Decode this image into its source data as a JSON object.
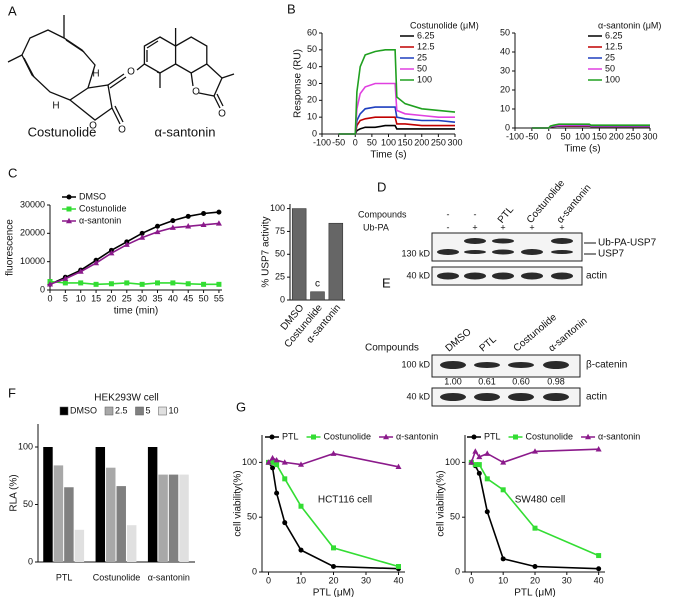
{
  "panel_labels": [
    "A",
    "B",
    "C",
    "D",
    "E",
    "F",
    "G"
  ],
  "structures": [
    {
      "name": "Costunolide",
      "atoms": [
        "H",
        "H",
        "O",
        "O"
      ]
    },
    {
      "name": "α-santonin",
      "atoms": [
        "O",
        "O",
        "O"
      ]
    }
  ],
  "blot_d": {
    "row_labels": [
      "Compounds",
      "Ub-PA"
    ],
    "compounds": [
      "-",
      "-"
    ],
    "lanes": [
      "PTL",
      "Costunolide",
      "α-santonin"
    ],
    "ub_pa": [
      "-",
      "+",
      "+",
      "+",
      "+"
    ],
    "size_markers": [
      "130 kD",
      "40 kD"
    ],
    "band_labels": [
      "Ub-PA-USP7",
      "USP7",
      "actin"
    ]
  },
  "blot_e": {
    "row_label": "Compounds",
    "lanes": [
      "DMSO",
      "PTL",
      "Costunolide",
      "α-santonin"
    ],
    "size_markers": [
      "100 kD",
      "40 kD"
    ],
    "band_labels": [
      "β-catenin",
      "actin"
    ],
    "quantities": [
      "1.00",
      "0.61",
      "0.60",
      "0.98"
    ]
  },
  "chart_data": [
    {
      "type": "line",
      "legend_title": "Costunolide (μM)",
      "xlabel": "Time (s)",
      "ylabel": "Response (RU)",
      "x": [
        -50,
        0,
        5,
        15,
        30,
        60,
        90,
        120,
        125,
        150,
        200,
        250,
        300
      ],
      "xlim": [
        -100,
        300
      ],
      "ylim": [
        0,
        60
      ],
      "xticks": [
        -100,
        -50,
        0,
        50,
        100,
        150,
        200,
        250,
        300
      ],
      "yticks": [
        0,
        10,
        20,
        30,
        40,
        50,
        60
      ],
      "series": [
        {
          "name": "6.25",
          "color": "#000000",
          "values": [
            0,
            0,
            2,
            3,
            4,
            4,
            5,
            5,
            3,
            3,
            3,
            3,
            3
          ]
        },
        {
          "name": "12.5",
          "color": "#c00000",
          "values": [
            0,
            0,
            5,
            8,
            9,
            10,
            10,
            10,
            6,
            6,
            5,
            5,
            5
          ]
        },
        {
          "name": "25",
          "color": "#1f3fbf",
          "values": [
            0,
            0,
            8,
            12,
            15,
            16,
            16,
            16,
            10,
            9,
            8,
            8,
            7
          ]
        },
        {
          "name": "50",
          "color": "#e040e0",
          "values": [
            0,
            0,
            15,
            24,
            28,
            30,
            30,
            30,
            14,
            12,
            11,
            10,
            10
          ]
        },
        {
          "name": "100",
          "color": "#20a020",
          "values": [
            0,
            0,
            25,
            40,
            47,
            49,
            50,
            50,
            22,
            18,
            15,
            14,
            13
          ]
        }
      ]
    },
    {
      "type": "line",
      "legend_title": "α-santonin (μM)",
      "xlabel": "Time (s)",
      "x": [
        -50,
        0,
        5,
        15,
        30,
        60,
        90,
        120,
        125,
        150,
        200,
        250,
        300
      ],
      "xlim": [
        -100,
        300
      ],
      "ylim": [
        0,
        50
      ],
      "xticks": [
        -100,
        -50,
        0,
        50,
        100,
        150,
        200,
        250,
        300
      ],
      "yticks": [
        0,
        10,
        20,
        30,
        40,
        50
      ],
      "series": [
        {
          "name": "6.25",
          "color": "#000000",
          "values": [
            0,
            0,
            0.5,
            0.8,
            1,
            1,
            1,
            1,
            0.8,
            0.8,
            0.8,
            0.8,
            0.8
          ]
        },
        {
          "name": "12.5",
          "color": "#c00000",
          "values": [
            0,
            0,
            0.6,
            0.9,
            1,
            1,
            1.1,
            1.1,
            0.9,
            0.9,
            0.9,
            0.9,
            0.9
          ]
        },
        {
          "name": "25",
          "color": "#1f3fbf",
          "values": [
            0,
            0,
            0.7,
            1,
            1.2,
            1.3,
            1.3,
            1.3,
            1,
            1,
            1,
            1,
            1
          ]
        },
        {
          "name": "50",
          "color": "#e040e0",
          "values": [
            0,
            0,
            0.8,
            1.2,
            1.5,
            1.6,
            1.6,
            1.6,
            1.2,
            1.2,
            1.2,
            1.2,
            1.2
          ]
        },
        {
          "name": "100",
          "color": "#20a020",
          "values": [
            0,
            0,
            1,
            1.5,
            2,
            2,
            2,
            2,
            1.5,
            1.5,
            1.5,
            1.5,
            1.5
          ]
        }
      ]
    },
    {
      "type": "line",
      "markers": true,
      "xlabel": "time (min)",
      "ylabel": "fluorescence",
      "x": [
        0,
        5,
        10,
        15,
        20,
        25,
        30,
        35,
        40,
        45,
        50,
        55
      ],
      "xlim": [
        0,
        56
      ],
      "ylim": [
        0,
        30000
      ],
      "xticks": [
        0,
        5,
        10,
        15,
        20,
        25,
        30,
        35,
        40,
        45,
        50,
        55
      ],
      "yticks": [
        0,
        10000,
        20000,
        30000
      ],
      "series": [
        {
          "name": "DMSO",
          "color": "#000000",
          "marker": "circle",
          "values": [
            2000,
            4500,
            7000,
            10500,
            14000,
            17000,
            20000,
            22500,
            24500,
            26000,
            27000,
            27500
          ]
        },
        {
          "name": "Costunolide",
          "color": "#33dd33",
          "marker": "square",
          "values": [
            3000,
            2500,
            2500,
            2000,
            2200,
            2500,
            2000,
            2500,
            2500,
            2200,
            2000,
            2000
          ]
        },
        {
          "name": "α-santonin",
          "color": "#8b1a8b",
          "marker": "triangle",
          "values": [
            2000,
            4000,
            6500,
            9500,
            13000,
            16000,
            18500,
            20500,
            22000,
            22500,
            23000,
            23500
          ]
        }
      ]
    },
    {
      "type": "bar",
      "ylabel": "% USP7 activity",
      "color": "#666666",
      "categories": [
        "DMSO",
        "Costunolide",
        "α-santonin"
      ],
      "values": [
        100,
        9,
        84
      ],
      "bar_annotations": [
        null,
        "c",
        null
      ],
      "ylim": [
        0,
        105
      ],
      "yticks": [
        0,
        25,
        50,
        75,
        100
      ]
    },
    {
      "type": "grouped_bar",
      "title": "HEK293W cell",
      "ylabel": "RLA (%)",
      "categories": [
        "PTL",
        "Costunolide",
        "α-santonin"
      ],
      "ylim": [
        0,
        120
      ],
      "yticks": [
        0,
        50,
        100
      ],
      "series": [
        {
          "name": "DMSO",
          "color": "#000000",
          "values": [
            100,
            100,
            100
          ]
        },
        {
          "name": "2.5",
          "color": "#a8a8a8",
          "values": [
            84,
            82,
            76
          ]
        },
        {
          "name": "5",
          "color": "#808080",
          "values": [
            65,
            66,
            76
          ]
        },
        {
          "name": "10",
          "color": "#e0e0e0",
          "values": [
            28,
            32,
            76
          ]
        }
      ]
    },
    {
      "type": "line",
      "markers": true,
      "annotation": "HCT116 cell",
      "xlabel": "PTL (μM)",
      "ylabel": "cell viability(%)",
      "x": [
        0,
        1.25,
        2.5,
        5,
        10,
        20,
        40
      ],
      "xlim": [
        -2,
        42
      ],
      "ylim": [
        0,
        125
      ],
      "xticks": [
        0,
        10,
        20,
        30,
        40
      ],
      "yticks": [
        0,
        50,
        100
      ],
      "series": [
        {
          "name": "PTL",
          "color": "#000000",
          "marker": "circle",
          "values": [
            100,
            95,
            72,
            45,
            20,
            5,
            3
          ]
        },
        {
          "name": "Costunolide",
          "color": "#33dd33",
          "marker": "square",
          "values": [
            100,
            100,
            98,
            85,
            60,
            22,
            5
          ]
        },
        {
          "name": "α-santonin",
          "color": "#8b1a8b",
          "marker": "triangle",
          "values": [
            100,
            104,
            102,
            100,
            98,
            108,
            96
          ]
        }
      ]
    },
    {
      "type": "line",
      "markers": true,
      "annotation": "SW480 cell",
      "xlabel": "PTL (μM)",
      "ylabel": "cell viability(%)",
      "x": [
        0,
        1.25,
        2.5,
        5,
        10,
        20,
        40
      ],
      "xlim": [
        -2,
        42
      ],
      "ylim": [
        0,
        125
      ],
      "xticks": [
        0,
        10,
        20,
        30,
        40
      ],
      "yticks": [
        0,
        50,
        100
      ],
      "series": [
        {
          "name": "PTL",
          "color": "#000000",
          "marker": "circle",
          "values": [
            100,
            97,
            90,
            55,
            12,
            5,
            3
          ]
        },
        {
          "name": "Costunolide",
          "color": "#33dd33",
          "marker": "square",
          "values": [
            100,
            98,
            98,
            85,
            75,
            40,
            15
          ]
        },
        {
          "name": "α-santonin",
          "color": "#8b1a8b",
          "marker": "triangle",
          "values": [
            100,
            110,
            105,
            108,
            100,
            110,
            112
          ]
        }
      ]
    }
  ]
}
